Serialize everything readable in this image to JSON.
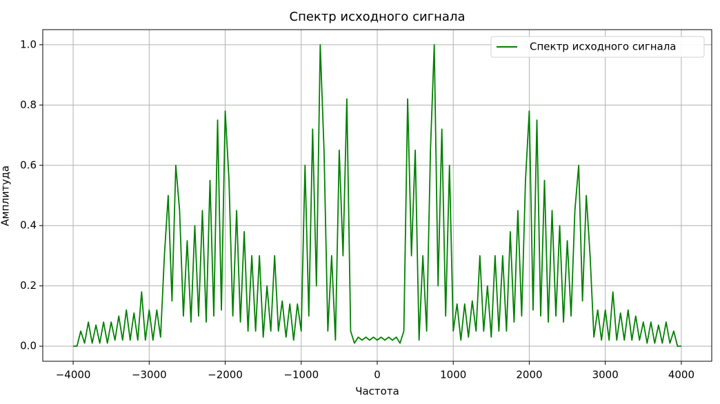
{
  "chart_data": {
    "type": "line",
    "title": "Спектр исходного сигнала",
    "xlabel": "Частота",
    "ylabel": "Амплитуда",
    "x": [
      -4000,
      -3950,
      -3900,
      -3850,
      -3800,
      -3750,
      -3700,
      -3650,
      -3600,
      -3550,
      -3500,
      -3450,
      -3400,
      -3350,
      -3300,
      -3250,
      -3200,
      -3150,
      -3100,
      -3050,
      -3000,
      -2950,
      -2900,
      -2850,
      -2800,
      -2750,
      -2700,
      -2650,
      -2600,
      -2550,
      -2500,
      -2450,
      -2400,
      -2350,
      -2300,
      -2250,
      -2200,
      -2150,
      -2100,
      -2050,
      -2000,
      -1950,
      -1900,
      -1850,
      -1800,
      -1750,
      -1700,
      -1650,
      -1600,
      -1550,
      -1500,
      -1450,
      -1400,
      -1350,
      -1300,
      -1250,
      -1200,
      -1150,
      -1100,
      -1050,
      -1000,
      -950,
      -900,
      -850,
      -800,
      -750,
      -700,
      -650,
      -600,
      -550,
      -500,
      -450,
      -400,
      -350,
      -300,
      -250,
      -200,
      -150,
      -100,
      -50,
      0,
      50,
      100,
      150,
      200,
      250,
      300,
      350,
      400,
      450,
      500,
      550,
      600,
      650,
      700,
      750,
      800,
      850,
      900,
      950,
      1000,
      1050,
      1100,
      1150,
      1200,
      1250,
      1300,
      1350,
      1400,
      1450,
      1500,
      1550,
      1600,
      1650,
      1700,
      1750,
      1800,
      1850,
      1900,
      1950,
      2000,
      2050,
      2100,
      2150,
      2200,
      2250,
      2300,
      2350,
      2400,
      2450,
      2500,
      2550,
      2600,
      2650,
      2700,
      2750,
      2800,
      2850,
      2900,
      2950,
      3000,
      3050,
      3100,
      3150,
      3200,
      3250,
      3300,
      3350,
      3400,
      3450,
      3500,
      3550,
      3600,
      3650,
      3700,
      3750,
      3800,
      3850,
      3900,
      3950,
      4000
    ],
    "series": [
      {
        "name": "Спектр исходного сигнала",
        "color": "#008000",
        "values": [
          0,
          0,
          0.05,
          0.01,
          0.08,
          0.01,
          0.07,
          0.01,
          0.08,
          0.01,
          0.08,
          0.02,
          0.1,
          0.02,
          0.12,
          0.02,
          0.11,
          0.02,
          0.18,
          0.02,
          0.12,
          0.02,
          0.12,
          0.03,
          0.3,
          0.5,
          0.15,
          0.6,
          0.45,
          0.1,
          0.35,
          0.08,
          0.4,
          0.1,
          0.45,
          0.08,
          0.55,
          0.1,
          0.75,
          0.12,
          0.78,
          0.55,
          0.1,
          0.45,
          0.08,
          0.38,
          0.05,
          0.3,
          0.05,
          0.3,
          0.03,
          0.2,
          0.05,
          0.3,
          0.05,
          0.15,
          0.03,
          0.14,
          0.02,
          0.14,
          0.05,
          0.6,
          0.1,
          0.72,
          0.2,
          1.0,
          0.65,
          0.05,
          0.3,
          0.02,
          0.65,
          0.3,
          0.82,
          0.05,
          0.01,
          0.03,
          0.02,
          0.03,
          0.02,
          0.03,
          0.02,
          0.03,
          0.02,
          0.03,
          0.02,
          0.03,
          0.01,
          0.05,
          0.82,
          0.3,
          0.65,
          0.02,
          0.3,
          0.05,
          0.65,
          1.0,
          0.2,
          0.72,
          0.1,
          0.6,
          0.05,
          0.14,
          0.02,
          0.14,
          0.03,
          0.15,
          0.05,
          0.3,
          0.05,
          0.2,
          0.03,
          0.3,
          0.05,
          0.3,
          0.05,
          0.38,
          0.08,
          0.45,
          0.1,
          0.55,
          0.78,
          0.12,
          0.75,
          0.1,
          0.55,
          0.08,
          0.45,
          0.1,
          0.4,
          0.08,
          0.35,
          0.1,
          0.45,
          0.6,
          0.15,
          0.5,
          0.3,
          0.03,
          0.12,
          0.02,
          0.12,
          0.02,
          0.18,
          0.02,
          0.11,
          0.02,
          0.12,
          0.02,
          0.1,
          0.02,
          0.08,
          0.01,
          0.08,
          0.01,
          0.07,
          0.01,
          0.08,
          0.01,
          0.05,
          0,
          0
        ]
      }
    ],
    "xlim": [
      -4400,
      4400
    ],
    "ylim": [
      -0.05,
      1.05
    ],
    "xticks": [
      {
        "value": -4000,
        "label": "−4000"
      },
      {
        "value": -3000,
        "label": "−3000"
      },
      {
        "value": -2000,
        "label": "−2000"
      },
      {
        "value": -1000,
        "label": "−1000"
      },
      0,
      1000,
      2000,
      3000,
      4000
    ],
    "yticks": [
      {
        "value": 0,
        "label": "0.0"
      },
      0.2,
      0.4,
      0.6,
      0.8,
      {
        "value": 1,
        "label": "1.0"
      }
    ],
    "grid": true,
    "legend": "upper right"
  }
}
